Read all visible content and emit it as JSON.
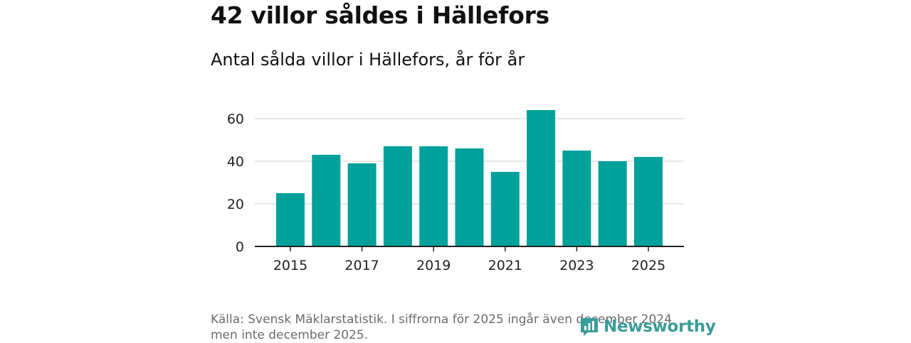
{
  "header": {
    "title": "42 villor såldes i Hällefors",
    "subtitle": "Antal sålda villor i Hällefors, år för år"
  },
  "chart_data": {
    "type": "bar",
    "title": "Antal sålda villor i Hällefors, år för år",
    "xlabel": "",
    "ylabel": "",
    "categories": [
      "2015",
      "2016",
      "2017",
      "2018",
      "2019",
      "2020",
      "2021",
      "2022",
      "2023",
      "2024",
      "2025"
    ],
    "values": [
      25,
      43,
      39,
      47,
      47,
      46,
      35,
      64,
      45,
      40,
      42
    ],
    "ylim": [
      0,
      65
    ],
    "y_ticks": [
      0,
      20,
      40,
      60
    ],
    "x_tick_labels": [
      "2015",
      "2017",
      "2019",
      "2021",
      "2023",
      "2025"
    ],
    "grid": true,
    "bar_color": "#00a19a"
  },
  "footer": {
    "source_line1": "Källa: Svensk Mäklarstatistik. I siffrorna för 2025 ingår även december 2024",
    "source_line2": "men inte december 2025."
  },
  "brand": {
    "name": "Newsworthy",
    "icon": "bar-chart-logo-icon",
    "color": "#3a9c97"
  }
}
